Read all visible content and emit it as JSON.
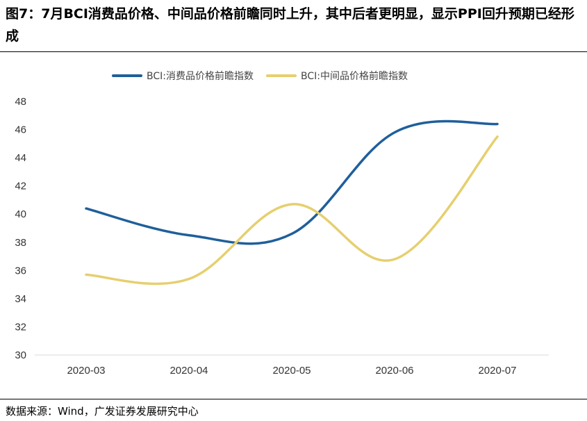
{
  "figure": {
    "title": "图7：7月BCI消费品价格、中间品价格前瞻同时上升，其中后者更明显，显示PPI回升预期已经形成",
    "source": "数据来源：Wind，广发证券发展研究中心"
  },
  "chart_data": {
    "type": "line",
    "categories": [
      "2020-03",
      "2020-04",
      "2020-05",
      "2020-06",
      "2020-07"
    ],
    "series": [
      {
        "name": "BCI:消费品价格前瞻指数",
        "color": "#1F5F9B",
        "values": [
          40.4,
          38.5,
          38.6,
          45.8,
          46.4
        ]
      },
      {
        "name": "BCI:中间品价格前瞻指数",
        "color": "#E6CF6E",
        "values": [
          35.7,
          35.4,
          40.7,
          36.8,
          45.5
        ]
      }
    ],
    "ylim": [
      30,
      48
    ],
    "yticks": [
      30,
      32,
      34,
      36,
      38,
      40,
      42,
      44,
      46,
      48
    ],
    "grid": false,
    "legend": "top-center",
    "smooth": true
  }
}
